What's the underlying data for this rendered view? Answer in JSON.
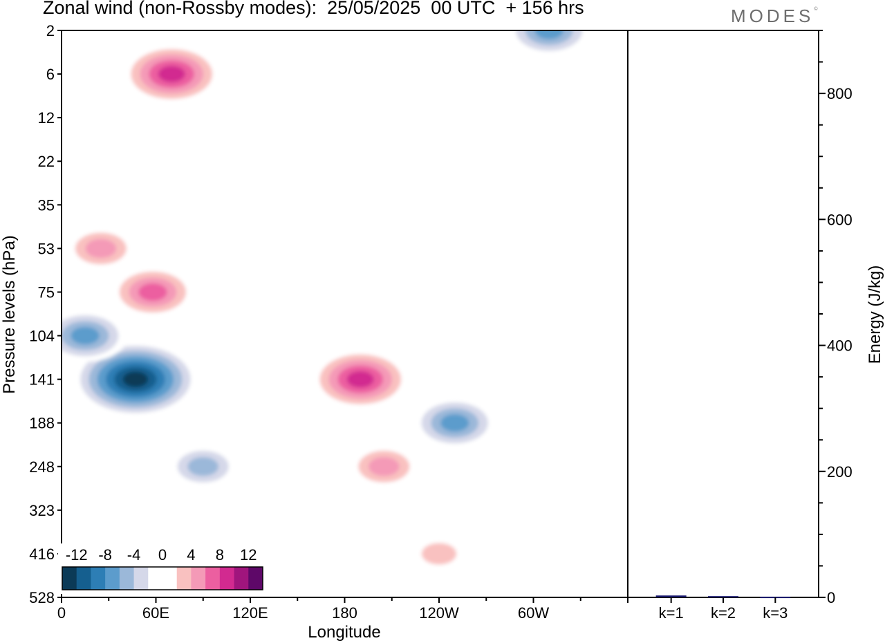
{
  "title": "Zonal wind (non-Rossby modes):  25/05/2025  00 UTC  + 156 hrs",
  "logo": {
    "text": "MODES",
    "mark": "©"
  },
  "chart_data": [
    {
      "type": "heatmap",
      "title": "Zonal wind (non-Rossby modes):  25/05/2025  00 UTC  + 156 hrs",
      "xlabel": "Longitude",
      "ylabel": "Pressure levels (hPa)",
      "x_ticks": [
        "0",
        "60E",
        "120E",
        "180",
        "120W",
        "60W"
      ],
      "x_tick_lon": [
        0,
        60,
        120,
        180,
        240,
        300
      ],
      "xlim": [
        0,
        360
      ],
      "y_ticks": [
        "2",
        "6",
        "12",
        "22",
        "35",
        "53",
        "75",
        "104",
        "141",
        "188",
        "248",
        "323",
        "416",
        "528"
      ],
      "colorbar": {
        "tick_labels": [
          "-12",
          "-8",
          "-4",
          "0",
          "4",
          "8",
          "12"
        ],
        "bounds": [
          -14,
          -12,
          -10,
          -8,
          -6,
          -4,
          -2,
          0,
          2,
          4,
          6,
          8,
          10,
          12,
          14
        ],
        "colors": [
          "#0b3a57",
          "#155f8f",
          "#2d7eb5",
          "#5c9ccc",
          "#9bb8d9",
          "#d5d8e9",
          "#ffffff",
          "#ffffff",
          "#f9c1c0",
          "#f49ab7",
          "#ec5fa0",
          "#d22a90",
          "#a0157d",
          "#5e0868"
        ]
      },
      "features": [
        {
          "name": "tropopause-jet-negative-core",
          "lon": 47,
          "level": "141",
          "value": -14
        },
        {
          "name": "negative-lobe-upper-trop",
          "lon": 90,
          "level": "248",
          "value": -6
        },
        {
          "name": "negative-band-104hPa",
          "lon": 15,
          "level": "104",
          "value": -8
        },
        {
          "name": "positive-blob-75hPa",
          "lon": 58,
          "level": "75",
          "value": 8
        },
        {
          "name": "positive-band-53hPa",
          "lon": 25,
          "level": "53",
          "value": 6
        },
        {
          "name": "pacific-positive-jet",
          "lon": 190,
          "level": "141",
          "value": 10
        },
        {
          "name": "pacific-positive-jet-lower",
          "lon": 205,
          "level": "248",
          "value": 6
        },
        {
          "name": "negative-blob-188hPa",
          "lon": 250,
          "level": "188",
          "value": -8
        },
        {
          "name": "stratospheric-positive-streak",
          "lon": 70,
          "level": "6",
          "value": 10
        },
        {
          "name": "stratospheric-negative-streak",
          "lon": 310,
          "level": "2",
          "value": -8
        },
        {
          "name": "positive-patch-416hPa",
          "lon": 240,
          "level": "416",
          "value": 4
        }
      ]
    },
    {
      "type": "bar",
      "categories": [
        "k=1",
        "k=2",
        "k=3"
      ],
      "values": [
        3,
        2,
        1
      ],
      "ylabel": "Energy (J/kg)",
      "ylim": [
        0,
        900
      ],
      "y_ticks": [
        0,
        200,
        400,
        600,
        800
      ],
      "bar_color": "#1a1a6e"
    }
  ]
}
